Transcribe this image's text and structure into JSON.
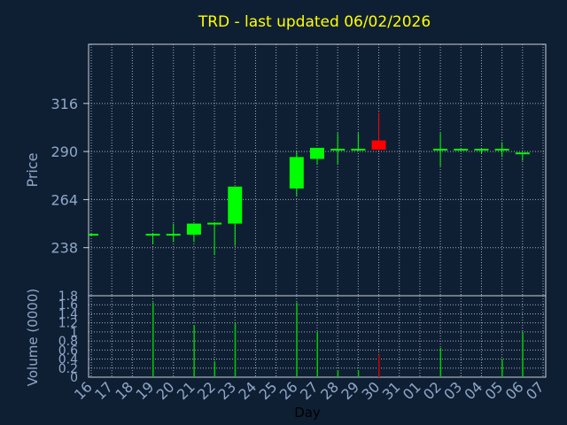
{
  "title": "TRD - last updated 06/02/2026",
  "colors": {
    "background": "#0f1f33",
    "grid": "#c8d0dc",
    "axis_text": "#8fa7c8",
    "title": "#ffff00",
    "up": "#00ff00",
    "down": "#ff0000",
    "up_volume": "#00c800",
    "down_volume": "#c80000"
  },
  "chart_data": [
    {
      "type": "candlestick",
      "ylabel": "Price",
      "ylim": [
        212,
        348
      ],
      "yticks": [
        238,
        264,
        290,
        316
      ],
      "grid": true,
      "days": [
        {
          "label": "16",
          "open": 245,
          "high": 245,
          "low": 245,
          "close": 245
        },
        {
          "label": "17"
        },
        {
          "label": "18"
        },
        {
          "label": "19",
          "open": 245,
          "high": 245,
          "low": 240,
          "close": 245
        },
        {
          "label": "20",
          "open": 245,
          "high": 251,
          "low": 241,
          "close": 245
        },
        {
          "label": "21",
          "open": 245,
          "high": 251,
          "low": 241,
          "close": 251
        },
        {
          "label": "22",
          "open": 251,
          "high": 251,
          "low": 234,
          "close": 251
        },
        {
          "label": "23",
          "open": 251,
          "high": 271,
          "low": 239,
          "close": 271
        },
        {
          "label": "24"
        },
        {
          "label": "25"
        },
        {
          "label": "26",
          "open": 270,
          "high": 290,
          "low": 266,
          "close": 287
        },
        {
          "label": "27",
          "open": 286,
          "high": 292,
          "low": 283,
          "close": 292
        },
        {
          "label": "28",
          "open": 291,
          "high": 300,
          "low": 283,
          "close": 291
        },
        {
          "label": "29",
          "open": 291,
          "high": 300,
          "low": 291,
          "close": 291
        },
        {
          "label": "30",
          "open": 296,
          "high": 311,
          "low": 291,
          "close": 291
        },
        {
          "label": "31"
        },
        {
          "label": "01"
        },
        {
          "label": "02",
          "open": 291,
          "high": 300,
          "low": 282,
          "close": 291
        },
        {
          "label": "03",
          "open": 291,
          "high": 291,
          "low": 290,
          "close": 291
        },
        {
          "label": "04",
          "open": 291,
          "high": 291,
          "low": 289,
          "close": 291
        },
        {
          "label": "05",
          "open": 291,
          "high": 295,
          "low": 287,
          "close": 291
        },
        {
          "label": "06",
          "open": 289,
          "high": 289,
          "low": 285,
          "close": 289
        },
        {
          "label": "07"
        }
      ]
    },
    {
      "type": "bar",
      "ylabel": "Volume (0000)",
      "xlabel": "Day",
      "ylim": [
        0,
        1.8
      ],
      "yticks": [
        "0",
        "0.2",
        "0.4",
        "0.6",
        "0.8",
        "1",
        "1.2",
        "1.4",
        "1.6",
        "1.8"
      ],
      "categories": [
        "16",
        "17",
        "18",
        "19",
        "20",
        "21",
        "22",
        "23",
        "24",
        "25",
        "26",
        "27",
        "28",
        "29",
        "30",
        "31",
        "01",
        "02",
        "03",
        "04",
        "05",
        "06",
        "07"
      ],
      "values": [
        0,
        0,
        0,
        1.65,
        0,
        1.15,
        0.35,
        1.2,
        0,
        0,
        1.65,
        1.0,
        0.15,
        0.15,
        0.5,
        0,
        0,
        0.65,
        0,
        0,
        0.4,
        1.0,
        0
      ],
      "direction": [
        "up",
        "",
        "",
        "up",
        "up",
        "up",
        "up",
        "up",
        "",
        "",
        "up",
        "up",
        "up",
        "up",
        "down",
        "",
        "",
        "up",
        "up",
        "up",
        "up",
        "up",
        ""
      ]
    }
  ]
}
